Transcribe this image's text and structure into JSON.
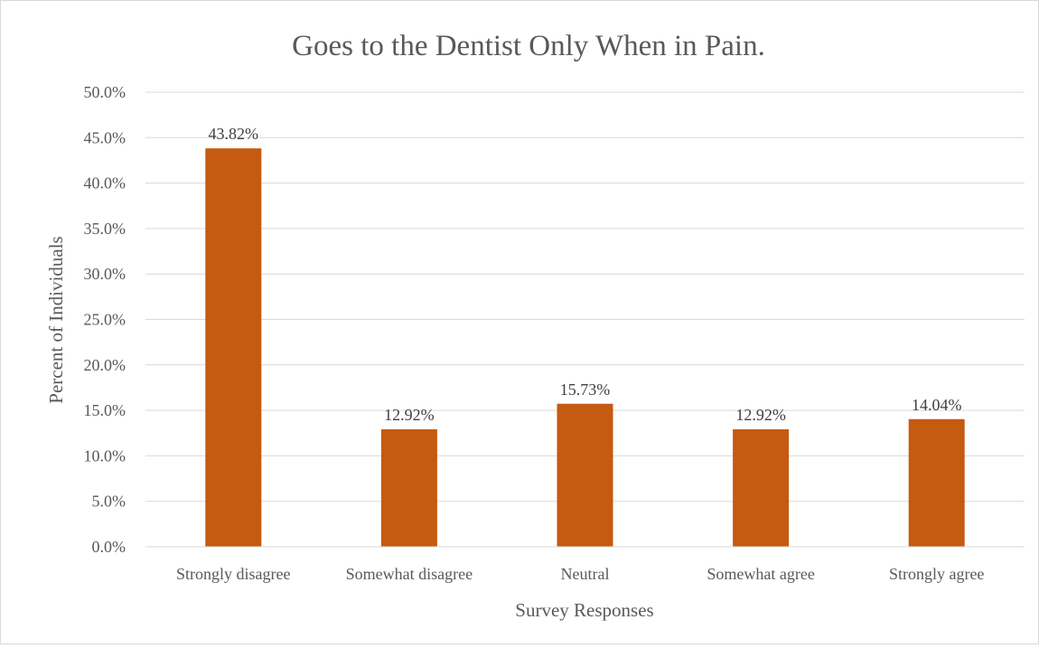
{
  "chart_data": {
    "type": "bar",
    "title": "Goes to the Dentist Only When in Pain.",
    "xlabel": "Survey Responses",
    "ylabel": "Percent of Individuals",
    "categories": [
      "Strongly disagree",
      "Somewhat disagree",
      "Neutral",
      "Somewhat agree",
      "Strongly agree"
    ],
    "values": [
      43.82,
      12.92,
      15.73,
      12.92,
      14.04
    ],
    "data_labels": [
      "43.82%",
      "12.92%",
      "15.73%",
      "12.92%",
      "14.04%"
    ],
    "ylim": [
      0,
      50
    ],
    "y_ticks": [
      "0.0%",
      "5.0%",
      "10.0%",
      "15.0%",
      "20.0%",
      "25.0%",
      "30.0%",
      "35.0%",
      "40.0%",
      "45.0%",
      "50.0%"
    ],
    "grid": true,
    "legend": "none",
    "bar_color": "#c55a11"
  }
}
